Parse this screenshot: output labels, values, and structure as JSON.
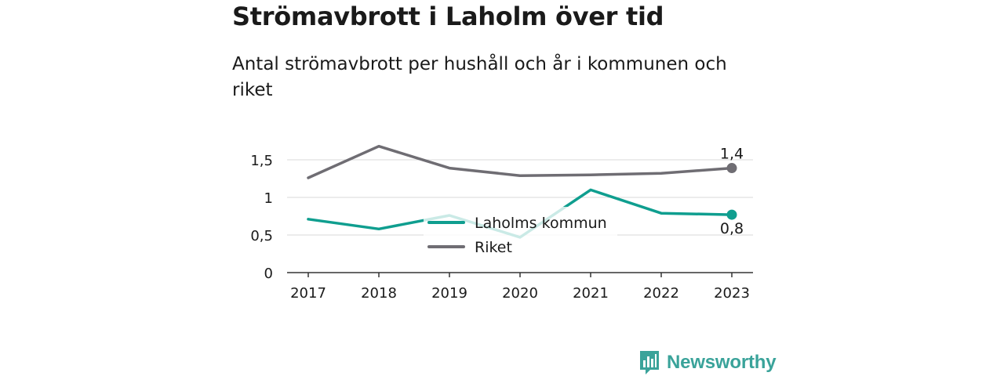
{
  "title": "Strömavbrott i Laholm över tid",
  "subtitle": "Antal strömavbrott per hushåll och år i kommunen och riket",
  "brand": {
    "name": "Newsworthy",
    "icon": "newsworthy-logo-icon",
    "color": "#3aa39a"
  },
  "chart_data": {
    "type": "line",
    "title": "Strömavbrott i Laholm över tid",
    "subtitle": "Antal strömavbrott per hushåll och år i kommunen och riket",
    "x": [
      "2017",
      "2018",
      "2019",
      "2020",
      "2021",
      "2022",
      "2023"
    ],
    "xlabel": "",
    "ylabel": "",
    "ylim": [
      0,
      1.9
    ],
    "yticks": [
      0,
      0.5,
      1,
      1.5
    ],
    "ytick_labels": [
      "0",
      "0,5",
      "1",
      "1,5"
    ],
    "grid": true,
    "legend_position": "center",
    "series": [
      {
        "name": "Laholms kommun",
        "color": "#0f9e8f",
        "values": [
          0.71,
          0.58,
          0.76,
          0.47,
          1.1,
          0.79,
          0.77
        ],
        "end_label": "0,8"
      },
      {
        "name": "Riket",
        "color": "#6f6d73",
        "values": [
          1.26,
          1.68,
          1.39,
          1.29,
          1.3,
          1.32,
          1.39
        ],
        "end_label": "1,4"
      }
    ]
  }
}
